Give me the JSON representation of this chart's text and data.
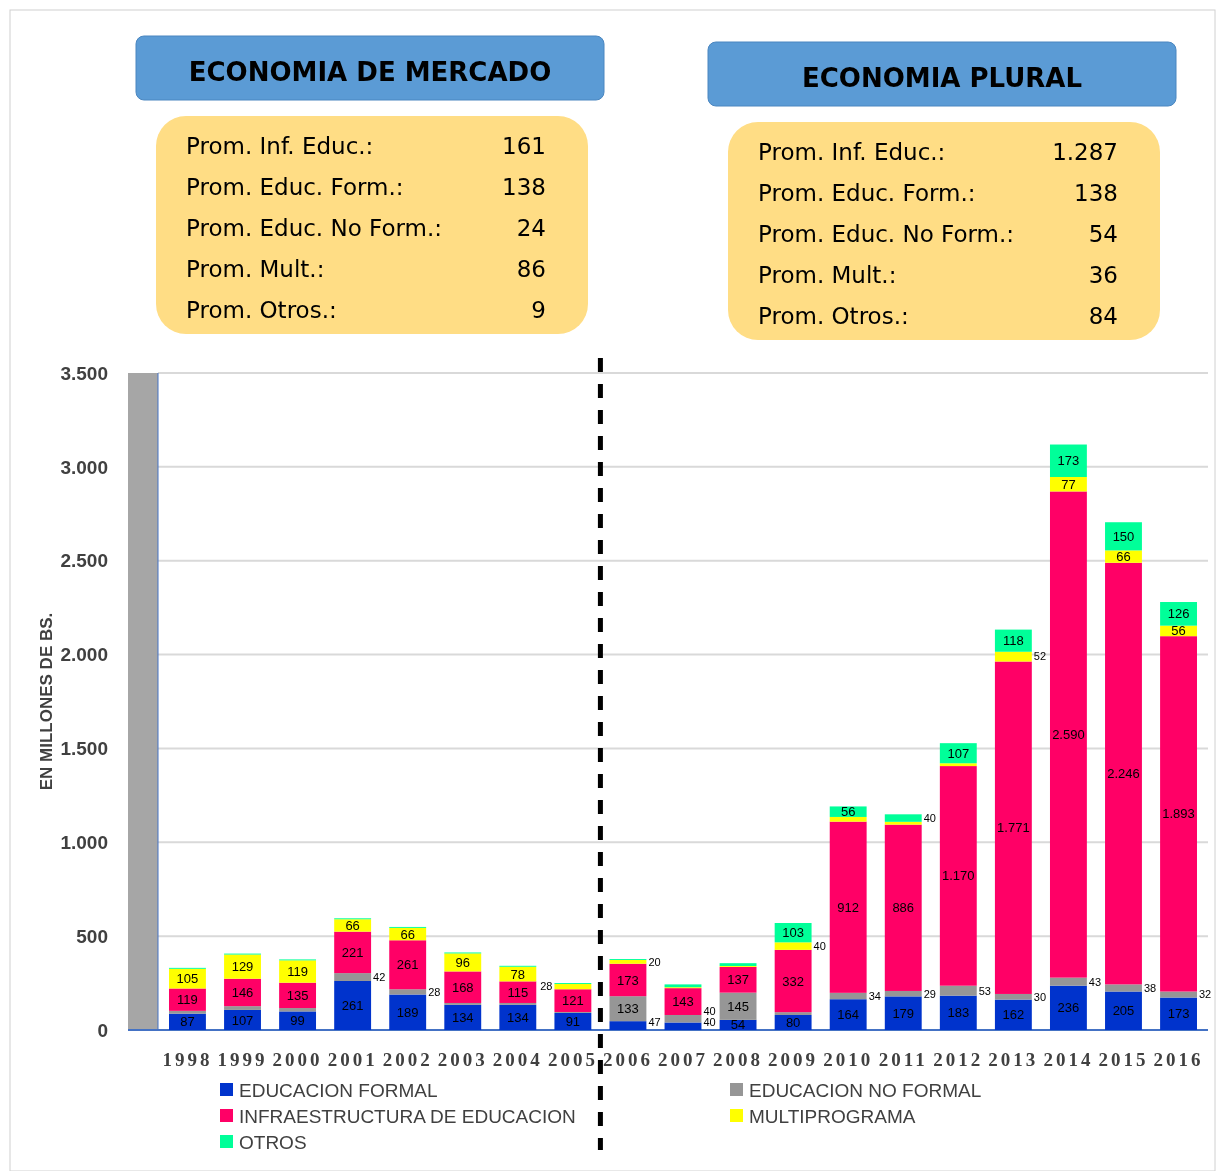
{
  "chart_data": {
    "type": "bar",
    "stacked": true,
    "ylabel": "EN MILLONES DE BS.",
    "categories": [
      "1998",
      "1999",
      "2000",
      "2001",
      "2002",
      "2003",
      "2004",
      "2005",
      "2006",
      "2007",
      "2008",
      "2009",
      "2010",
      "2011",
      "2012",
      "2013",
      "2014",
      "2015",
      "2016"
    ],
    "ylim": [
      0,
      3500
    ],
    "yticks": [
      0,
      {
        "value": 500,
        "label": "500"
      },
      {
        "value": 1000,
        "label": "1.000"
      },
      {
        "value": 1500,
        "label": "1.500"
      },
      {
        "value": 2000,
        "label": "2.000"
      },
      {
        "value": 2500,
        "label": "2.500"
      },
      {
        "value": 3000,
        "label": "3.000"
      },
      {
        "value": 3500,
        "label": "3.500"
      }
    ],
    "grid": "y",
    "legend": "bottom",
    "series": [
      {
        "name": "EDUCACION FORMAL",
        "color": "#0033cc",
        "values": [
          87,
          107,
          99,
          261,
          189,
          134,
          134,
          91,
          47,
          40,
          54,
          80,
          164,
          179,
          183,
          162,
          236,
          205,
          173
        ],
        "value_labels": [
          "87",
          "107",
          "99",
          "261",
          "189",
          "134",
          "134",
          "91",
          "47",
          "40",
          "54",
          "80",
          "164",
          "179",
          "183",
          "162",
          "236",
          "205",
          "173"
        ]
      },
      {
        "name": "EDUCACION NO FORMAL",
        "color": "#969696",
        "values": [
          15,
          20,
          18,
          42,
          28,
          10,
          10,
          5,
          133,
          40,
          145,
          15,
          34,
          29,
          53,
          30,
          43,
          38,
          32
        ],
        "value_labels": [
          null,
          null,
          null,
          "42",
          "28",
          null,
          null,
          null,
          "133",
          "40",
          "145",
          null,
          "34",
          "29",
          "53",
          "30",
          "43",
          "38",
          "32"
        ]
      },
      {
        "name": "INFRAESTRUCTURA DE EDUCACION",
        "color": "#ff0066",
        "values": [
          119,
          146,
          135,
          221,
          261,
          168,
          115,
          121,
          173,
          143,
          137,
          332,
          912,
          886,
          1170,
          1771,
          2590,
          2246,
          1893
        ],
        "value_labels": [
          "119",
          "146",
          "135",
          "221",
          "261",
          "168",
          "115",
          "121",
          "173",
          "143",
          "137",
          "332",
          "912",
          "886",
          "1.170",
          "1.771",
          "2.590",
          "2.246",
          "1.893"
        ]
      },
      {
        "name": "MULTIPROGRAMA",
        "color": "#ffff00",
        "values": [
          105,
          129,
          119,
          66,
          66,
          96,
          78,
          28,
          20,
          5,
          5,
          40,
          25,
          15,
          15,
          52,
          77,
          66,
          56
        ],
        "value_labels": [
          "105",
          "129",
          "119",
          "66",
          "66",
          "96",
          "78",
          "28",
          "20",
          null,
          null,
          "40",
          null,
          null,
          null,
          "52",
          "77",
          "66",
          "56"
        ]
      },
      {
        "name": "OTROS",
        "color": "#00ff99",
        "values": [
          5,
          5,
          5,
          5,
          5,
          5,
          5,
          5,
          5,
          15,
          15,
          103,
          56,
          40,
          107,
          118,
          173,
          150,
          126
        ],
        "value_labels": [
          null,
          null,
          null,
          null,
          null,
          null,
          null,
          null,
          null,
          null,
          null,
          "103",
          "56",
          "40",
          "107",
          "118",
          "173",
          "150",
          "126"
        ]
      }
    ],
    "ref_lines": [
      {
        "axis": "x",
        "value": "2006",
        "color": "#000000",
        "line_style": "dashed"
      }
    ],
    "annotations": [
      "ECONOMIA DE MERCADO",
      "Prom. Inf. Educ.: 161",
      "Prom. Educ. Form.: 138",
      "Prom. Educ. No Form.: 24",
      "Prom. Mult.: 86",
      "Prom. Otros.: 9",
      "ECONOMIA PLURAL",
      "Prom. Inf. Educ.: 1.287",
      "Prom. Educ. Form.: 138",
      "Prom. Educ. No Form.: 54",
      "Prom. Mult.: 36",
      "Prom. Otros.: 84"
    ]
  }
}
